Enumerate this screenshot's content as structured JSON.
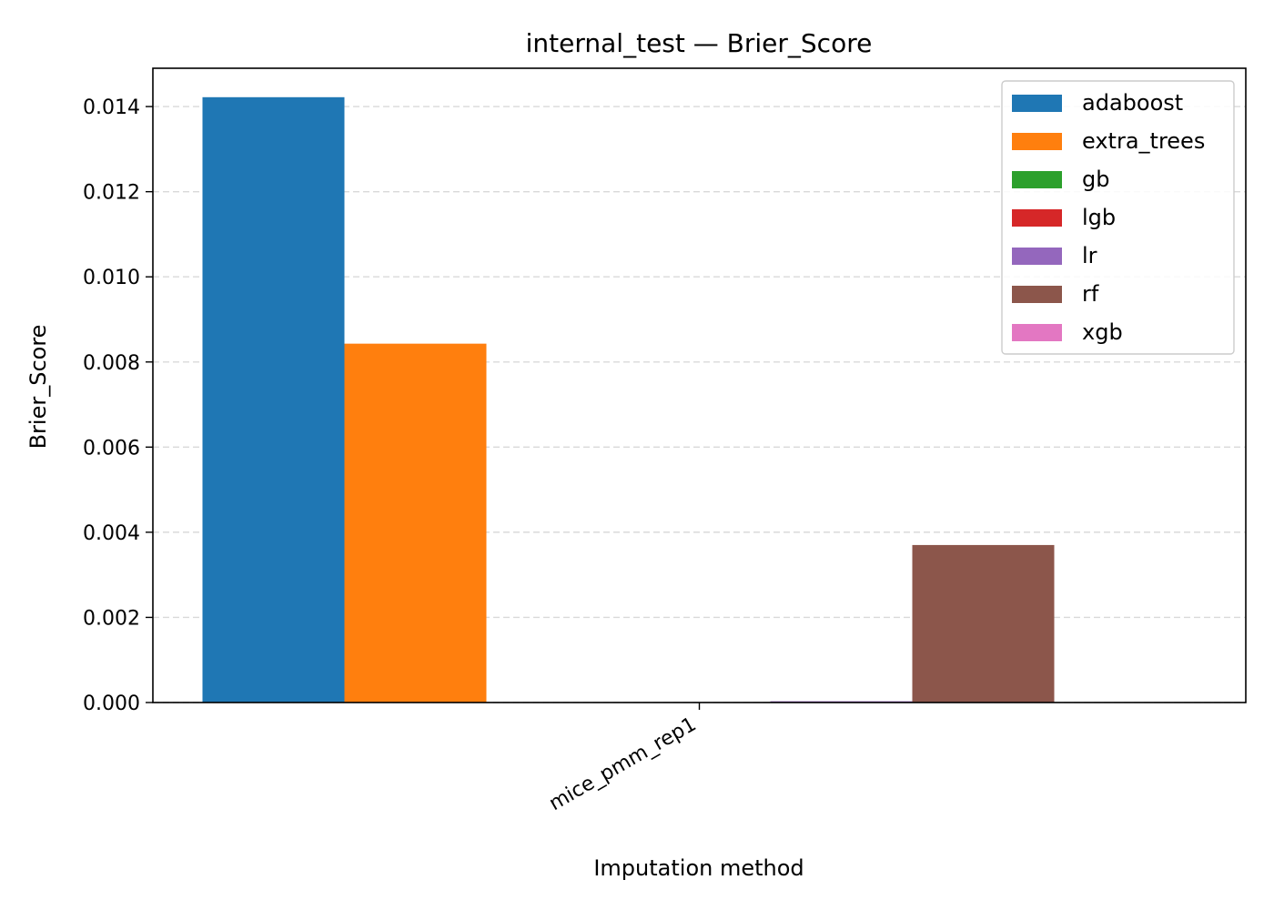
{
  "chart_data": {
    "type": "bar",
    "title": "internal_test — Brier_Score",
    "xlabel": "Imputation method",
    "ylabel": "Brier_Score",
    "categories": [
      "mice_pmm_rep1"
    ],
    "ylim": [
      0,
      0.0149
    ],
    "yticks": [
      "0.000",
      "0.002",
      "0.004",
      "0.006",
      "0.008",
      "0.010",
      "0.012",
      "0.014"
    ],
    "grid": "y-dashed",
    "legend_position": "top-right",
    "series": [
      {
        "name": "adaboost",
        "color": "#1f77b4",
        "values": [
          0.01422
        ]
      },
      {
        "name": "extra_trees",
        "color": "#ff7f0e",
        "values": [
          0.00843
        ]
      },
      {
        "name": "gb",
        "color": "#2ca02c",
        "values": [
          0.0
        ]
      },
      {
        "name": "lgb",
        "color": "#d62728",
        "values": [
          0.0
        ]
      },
      {
        "name": "lr",
        "color": "#9467bd",
        "values": [
          3e-05
        ]
      },
      {
        "name": "rf",
        "color": "#8c564b",
        "values": [
          0.0037
        ]
      },
      {
        "name": "xgb",
        "color": "#e377c2",
        "values": [
          0.0
        ]
      }
    ]
  }
}
